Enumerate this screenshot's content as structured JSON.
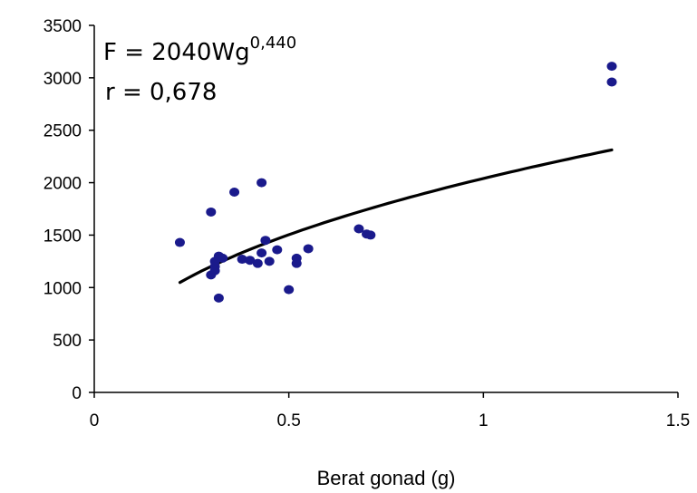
{
  "chart_data": {
    "type": "scatter",
    "title": "",
    "xlabel": "Berat gonad (g)",
    "ylabel": "",
    "xlim": [
      0,
      1.5
    ],
    "ylim": [
      0,
      3500
    ],
    "x_ticks": [
      "0",
      "0.5",
      "1",
      "1.5"
    ],
    "y_ticks": [
      "0",
      "500",
      "1000",
      "1500",
      "2000",
      "2500",
      "3000",
      "3500"
    ],
    "grid": false,
    "legend": "none",
    "point_color": "#1a1a8c",
    "trend_color": "#000000",
    "annotations": {
      "equation_main": "F = 2040Wg",
      "equation_exponent": "0,440",
      "r_value": "r = 0,678"
    },
    "trendline": {
      "type": "power",
      "coefficient": 2040,
      "exponent": 0.44,
      "x_range": [
        0.22,
        1.33
      ]
    },
    "points": [
      {
        "x": 0.22,
        "y": 1430
      },
      {
        "x": 0.3,
        "y": 1720
      },
      {
        "x": 0.36,
        "y": 1910
      },
      {
        "x": 0.43,
        "y": 2000
      },
      {
        "x": 0.31,
        "y": 1250
      },
      {
        "x": 0.32,
        "y": 1300
      },
      {
        "x": 0.33,
        "y": 1280
      },
      {
        "x": 0.31,
        "y": 1200
      },
      {
        "x": 0.3,
        "y": 1120
      },
      {
        "x": 0.31,
        "y": 1160
      },
      {
        "x": 0.32,
        "y": 900
      },
      {
        "x": 0.38,
        "y": 1270
      },
      {
        "x": 0.4,
        "y": 1260
      },
      {
        "x": 0.42,
        "y": 1230
      },
      {
        "x": 0.43,
        "y": 1330
      },
      {
        "x": 0.44,
        "y": 1450
      },
      {
        "x": 0.45,
        "y": 1250
      },
      {
        "x": 0.47,
        "y": 1360
      },
      {
        "x": 0.5,
        "y": 980
      },
      {
        "x": 0.52,
        "y": 1280
      },
      {
        "x": 0.52,
        "y": 1230
      },
      {
        "x": 0.55,
        "y": 1370
      },
      {
        "x": 0.68,
        "y": 1560
      },
      {
        "x": 0.7,
        "y": 1510
      },
      {
        "x": 0.71,
        "y": 1500
      },
      {
        "x": 1.33,
        "y": 3110
      },
      {
        "x": 1.33,
        "y": 2960
      }
    ]
  }
}
